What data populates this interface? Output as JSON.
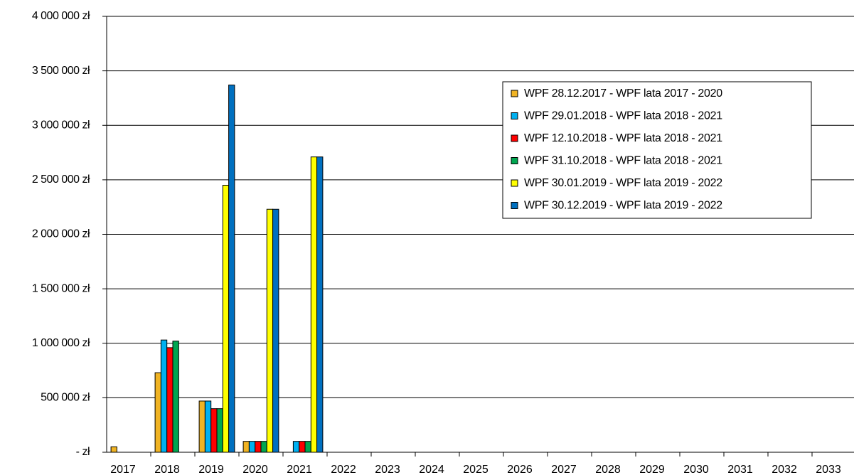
{
  "chart_data": {
    "type": "bar",
    "categories": [
      "2017",
      "2018",
      "2019",
      "2020",
      "2021",
      "2022",
      "2023",
      "2024",
      "2025",
      "2026",
      "2027",
      "2028",
      "2029",
      "2030",
      "2031",
      "2032",
      "2033"
    ],
    "series": [
      {
        "name": "WPF 28.12.2017 - WPF lata 2017 - 2020",
        "color": "#f0b323",
        "values": [
          50000,
          730000,
          470000,
          100000,
          0,
          0,
          0,
          0,
          0,
          0,
          0,
          0,
          0,
          0,
          0,
          0,
          0
        ]
      },
      {
        "name": "WPF 29.01.2018 - WPF lata 2018 - 2021",
        "color": "#00b0f0",
        "values": [
          0,
          1030000,
          470000,
          100000,
          100000,
          0,
          0,
          0,
          0,
          0,
          0,
          0,
          0,
          0,
          0,
          0,
          0
        ]
      },
      {
        "name": "WPF 12.10.2018 - WPF lata 2018 - 2021",
        "color": "#ff0000",
        "values": [
          0,
          960000,
          400000,
          100000,
          100000,
          0,
          0,
          0,
          0,
          0,
          0,
          0,
          0,
          0,
          0,
          0,
          0
        ]
      },
      {
        "name": "WPF 31.10.2018 - WPF lata 2018 - 2021",
        "color": "#00a650",
        "values": [
          0,
          1020000,
          400000,
          100000,
          100000,
          0,
          0,
          0,
          0,
          0,
          0,
          0,
          0,
          0,
          0,
          0,
          0
        ]
      },
      {
        "name": "WPF 30.01.2019 - WPF lata 2019 - 2022",
        "color": "#ffff00",
        "values": [
          0,
          0,
          2450000,
          2230000,
          2710000,
          0,
          0,
          0,
          0,
          0,
          0,
          0,
          0,
          0,
          0,
          0,
          0
        ]
      },
      {
        "name": "WPF 30.12.2019 - WPF lata 2019 - 2022",
        "color": "#0070c0",
        "values": [
          0,
          0,
          3370000,
          2230000,
          2710000,
          0,
          0,
          0,
          0,
          0,
          0,
          0,
          0,
          0,
          0,
          0,
          0
        ]
      }
    ],
    "ylim": [
      0,
      4000000
    ],
    "yticks": [
      {
        "value": 0,
        "label": "- zł"
      },
      {
        "value": 500000,
        "label": "500 000 zł"
      },
      {
        "value": 1000000,
        "label": "1 000 000 zł"
      },
      {
        "value": 1500000,
        "label": "1 500 000 zł"
      },
      {
        "value": 2000000,
        "label": "2 000 000 zł"
      },
      {
        "value": 2500000,
        "label": "2 500 000 zł"
      },
      {
        "value": 3000000,
        "label": "3 000 000 zł"
      },
      {
        "value": 3500000,
        "label": "3 500 000 zł"
      },
      {
        "value": 4000000,
        "label": "4 000 000 zł"
      }
    ],
    "grid": true,
    "legend": "upper right"
  }
}
